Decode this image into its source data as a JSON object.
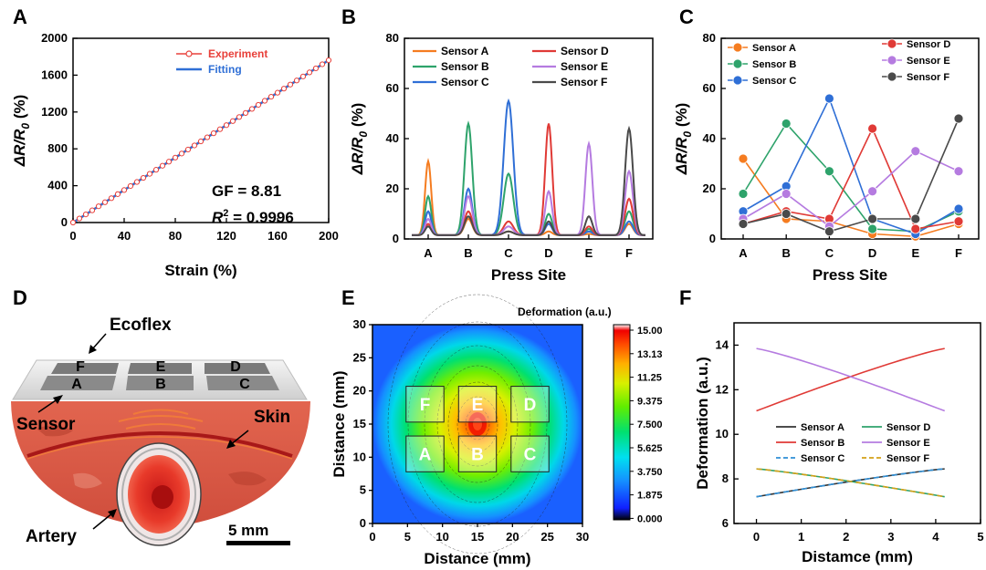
{
  "panels": {
    "A": {
      "label": "A",
      "type": "line",
      "xlabel": "Strain (%)",
      "ylabel_main": "ΔR/R",
      "ylabel_sub": "0",
      "ylabel_unit": " (%)",
      "xlim": [
        0,
        200
      ],
      "ylim": [
        0,
        2000
      ],
      "xticks": [
        "0",
        "40",
        "80",
        "120",
        "160",
        "200"
      ],
      "yticks": [
        "0",
        "400",
        "800",
        "1200",
        "1600",
        "2000"
      ],
      "legend": [
        "Experiment",
        "Fitting"
      ],
      "colors": {
        "experiment": "#e8403a",
        "fitting": "#2f6fd6"
      },
      "annotation_gf": "GF = 8.81",
      "annotation_r2_prefix": "R",
      "annotation_r2_sup": "2",
      "annotation_r2_value": " = 0.9996",
      "fit_slope": 8.81,
      "experiment_step": 5
    },
    "B": {
      "label": "B",
      "type": "line",
      "xlabel": "Press Site",
      "ylabel_main": "ΔR/R",
      "ylabel_sub": "0",
      "ylabel_unit": " (%)",
      "ylim": [
        0,
        80
      ],
      "yticks": [
        "0",
        "20",
        "40",
        "60",
        "80"
      ],
      "categories": [
        "A",
        "B",
        "C",
        "D",
        "E",
        "F"
      ],
      "series": [
        {
          "name": "Sensor A",
          "color": "#f57c20",
          "peaks": [
            31,
            8,
            3,
            3,
            2,
            6
          ]
        },
        {
          "name": "Sensor B",
          "color": "#2ea36b",
          "peaks": [
            17,
            46,
            26,
            10,
            4,
            11
          ]
        },
        {
          "name": "Sensor C",
          "color": "#2f6fd6",
          "peaks": [
            11,
            20,
            55,
            6,
            3,
            7
          ]
        },
        {
          "name": "Sensor D",
          "color": "#e03a36",
          "peaks": [
            6,
            11,
            7,
            46,
            5,
            16
          ]
        },
        {
          "name": "Sensor E",
          "color": "#b57be0",
          "peaks": [
            8,
            17,
            5,
            19,
            38,
            27
          ]
        },
        {
          "name": "Sensor F",
          "color": "#4a4a4a",
          "peaks": [
            5,
            9,
            3,
            7,
            9,
            44
          ]
        }
      ]
    },
    "C": {
      "label": "C",
      "type": "line",
      "xlabel": "Press Site",
      "ylabel_main": "ΔR/R",
      "ylabel_sub": "0",
      "ylabel_unit": " (%)",
      "ylim": [
        0,
        80
      ],
      "yticks": [
        "0",
        "20",
        "40",
        "60",
        "80"
      ],
      "categories": [
        "A",
        "B",
        "C",
        "D",
        "E",
        "F"
      ],
      "series": [
        {
          "name": "Sensor A",
          "color": "#f57c20",
          "values": [
            32,
            8,
            7,
            2,
            1,
            6
          ]
        },
        {
          "name": "Sensor B",
          "color": "#2ea36b",
          "values": [
            18,
            46,
            27,
            4,
            3,
            11
          ]
        },
        {
          "name": "Sensor C",
          "color": "#2f6fd6",
          "values": [
            11,
            21,
            56,
            8,
            2,
            12
          ]
        },
        {
          "name": "Sensor D",
          "color": "#e03a36",
          "values": [
            6,
            11,
            8,
            44,
            4,
            7
          ]
        },
        {
          "name": "Sensor E",
          "color": "#b57be0",
          "values": [
            8,
            18,
            5,
            19,
            35,
            27
          ]
        },
        {
          "name": "Sensor F",
          "color": "#4a4a4a",
          "values": [
            6,
            10,
            3,
            8,
            8,
            48
          ]
        }
      ]
    },
    "D": {
      "label": "D",
      "ecoflex": "Ecoflex",
      "sensor": "Sensor",
      "skin": "Skin",
      "artery": "Artery",
      "scale": "5 mm",
      "pads_back": [
        "F",
        "E",
        "D"
      ],
      "pads_front": [
        "A",
        "B",
        "C"
      ]
    },
    "E": {
      "label": "E",
      "type": "heatmap",
      "xlabel": "Distance (mm)",
      "ylabel": "Distance (mm)",
      "xlim": [
        0,
        30
      ],
      "ylim": [
        0,
        30
      ],
      "xticks": [
        "0",
        "5",
        "10",
        "15",
        "20",
        "25",
        "30"
      ],
      "yticks": [
        "0",
        "5",
        "10",
        "15",
        "20",
        "25",
        "30"
      ],
      "colorbar_title": "Deformation (a.u.)",
      "colorbar_ticks": [
        "15.00",
        "13.13",
        "11.25",
        "9.375",
        "7.500",
        "5.625",
        "3.750",
        "1.875",
        "0.000"
      ],
      "max_value": 15,
      "center": [
        15,
        15
      ],
      "sensors": [
        {
          "label": "F",
          "x": 7.5,
          "y": 18
        },
        {
          "label": "E",
          "x": 15,
          "y": 18
        },
        {
          "label": "D",
          "x": 22.5,
          "y": 18
        },
        {
          "label": "A",
          "x": 7.5,
          "y": 10.5
        },
        {
          "label": "B",
          "x": 15,
          "y": 10.5
        },
        {
          "label": "C",
          "x": 22.5,
          "y": 10.5
        }
      ]
    },
    "F": {
      "label": "F",
      "type": "line",
      "xlabel": "Distamce (mm)",
      "ylabel": "Deformation (a.u.)",
      "xlim": [
        -0.5,
        5
      ],
      "ylim": [
        6,
        15
      ],
      "xticks": [
        "0",
        "1",
        "2",
        "3",
        "4",
        "5"
      ],
      "yticks": [
        "6",
        "8",
        "10",
        "12",
        "14"
      ],
      "series": [
        {
          "name": "Sensor A",
          "color": "#333333",
          "dash": false,
          "start": 7.2,
          "end": 8.45
        },
        {
          "name": "Sensor B",
          "color": "#e03a36",
          "dash": false,
          "start": 11.05,
          "end": 13.85
        },
        {
          "name": "Sensor C",
          "color": "#2f8fd6",
          "dash": true,
          "start": 7.2,
          "end": 8.45
        },
        {
          "name": "Sensor D",
          "color": "#2ea36b",
          "dash": false,
          "start": 8.45,
          "end": 7.2
        },
        {
          "name": "Sensor E",
          "color": "#b57be0",
          "dash": false,
          "start": 13.85,
          "end": 11.05
        },
        {
          "name": "Sensor F",
          "color": "#d4a017",
          "dash": true,
          "start": 8.45,
          "end": 7.2
        }
      ],
      "x_end": 4.2
    }
  }
}
